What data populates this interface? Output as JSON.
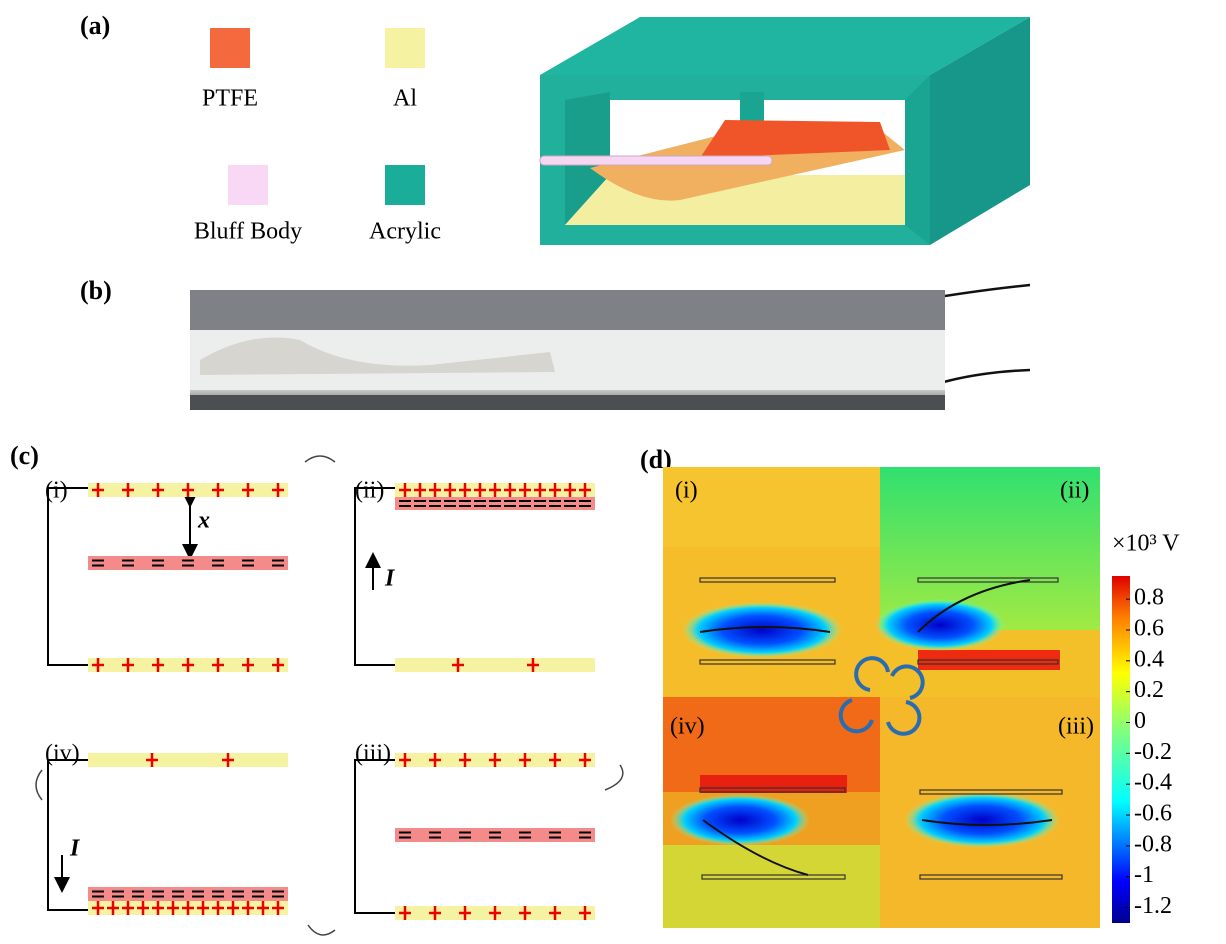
{
  "panel_a": {
    "label": "(a)",
    "legend": [
      {
        "name": "PTFE",
        "color": "#f4693e"
      },
      {
        "name": "Al",
        "color": "#f5f3a2"
      },
      {
        "name": "Bluff Body",
        "color": "#f8d8f4"
      },
      {
        "name": "Acrylic",
        "color": "#1aae9a"
      }
    ]
  },
  "panel_b": {
    "label": "(b)"
  },
  "panel_c": {
    "label": "(c)",
    "states": [
      "(i)",
      "(ii)",
      "(iii)",
      "(iv)"
    ],
    "gap_label": "x",
    "current_label": "I"
  },
  "panel_d": {
    "label": "(d)",
    "states": [
      "(i)",
      "(ii)",
      "(iii)",
      "(iv)"
    ],
    "colorbar": {
      "unit": "×10³ V",
      "lim": [
        -1.3,
        0.95
      ],
      "ticks": [
        0.8,
        0.6,
        0.4,
        0.2,
        0,
        -0.2,
        -0.4,
        -0.6,
        -0.8,
        -1,
        -1.2
      ]
    }
  }
}
